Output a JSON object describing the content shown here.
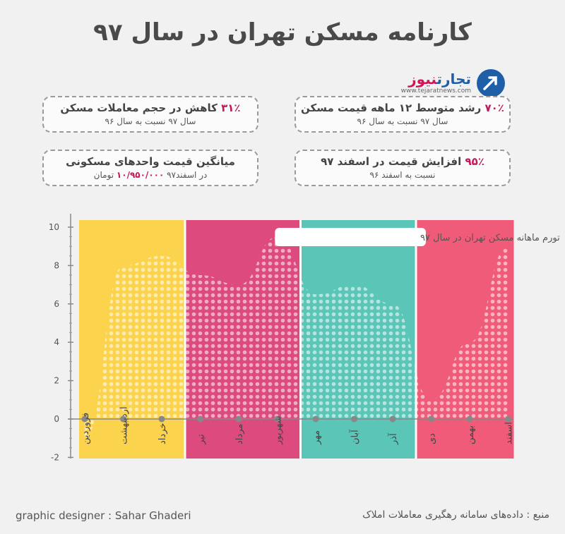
{
  "title": "کارنامه مسکن تهران در سال ۹۷",
  "logo": {
    "name_part1": "تجارت",
    "name_part2": "نیوز",
    "url": "www.tejaratnews.com"
  },
  "stats": [
    {
      "value": "۷۰٪",
      "text": "رشد متوسط ۱۲ ماهه قیمت مسکن",
      "sub": "سال ۹۷ نسبت به سال ۹۶"
    },
    {
      "value": "۳۱٪",
      "text": "کاهش در حجم معاملات مسکن",
      "sub": "سال ۹۷ نسبت به سال ۹۶"
    },
    {
      "value": "۹۵٪",
      "text": "افزایش قیمت در اسفند ۹۷",
      "sub": "نسبت به اسفند ۹۶"
    },
    {
      "text": "میانگین قیمت واحدهای مسکونی",
      "sub_prefix": "در اسفند۹۷",
      "sub_value": "۱۰/۹۵۰/۰۰۰",
      "sub_suffix": "تومان"
    }
  ],
  "chart_data": {
    "type": "area",
    "title": "تورم ماهانه مسکن تهران در سال ۹۷",
    "categories": [
      "فروردین",
      "اردیبهشت",
      "خرداد",
      "تیر",
      "مرداد",
      "شهریور",
      "مهر",
      "آبان",
      "آذر",
      "دی",
      "بهمن",
      "اسفند"
    ],
    "values": [
      -1,
      8,
      8.5,
      7.5,
      7,
      9.5,
      6.5,
      7,
      6,
      1,
      4,
      9
    ],
    "ylim": [
      -2,
      10
    ],
    "yticks": [
      "-2",
      "0",
      "2",
      "4",
      "6",
      "8",
      "10"
    ],
    "seasons": [
      {
        "color": "#fcd34d"
      },
      {
        "color": "#dc4a7e"
      },
      {
        "color": "#5bc5b8"
      },
      {
        "color": "#ef5b78"
      }
    ]
  },
  "footer": {
    "designer": "graphic designer : Sahar Ghaderi",
    "source": "منبع : داده‌های سامانه رهگیری معاملات املاک"
  }
}
